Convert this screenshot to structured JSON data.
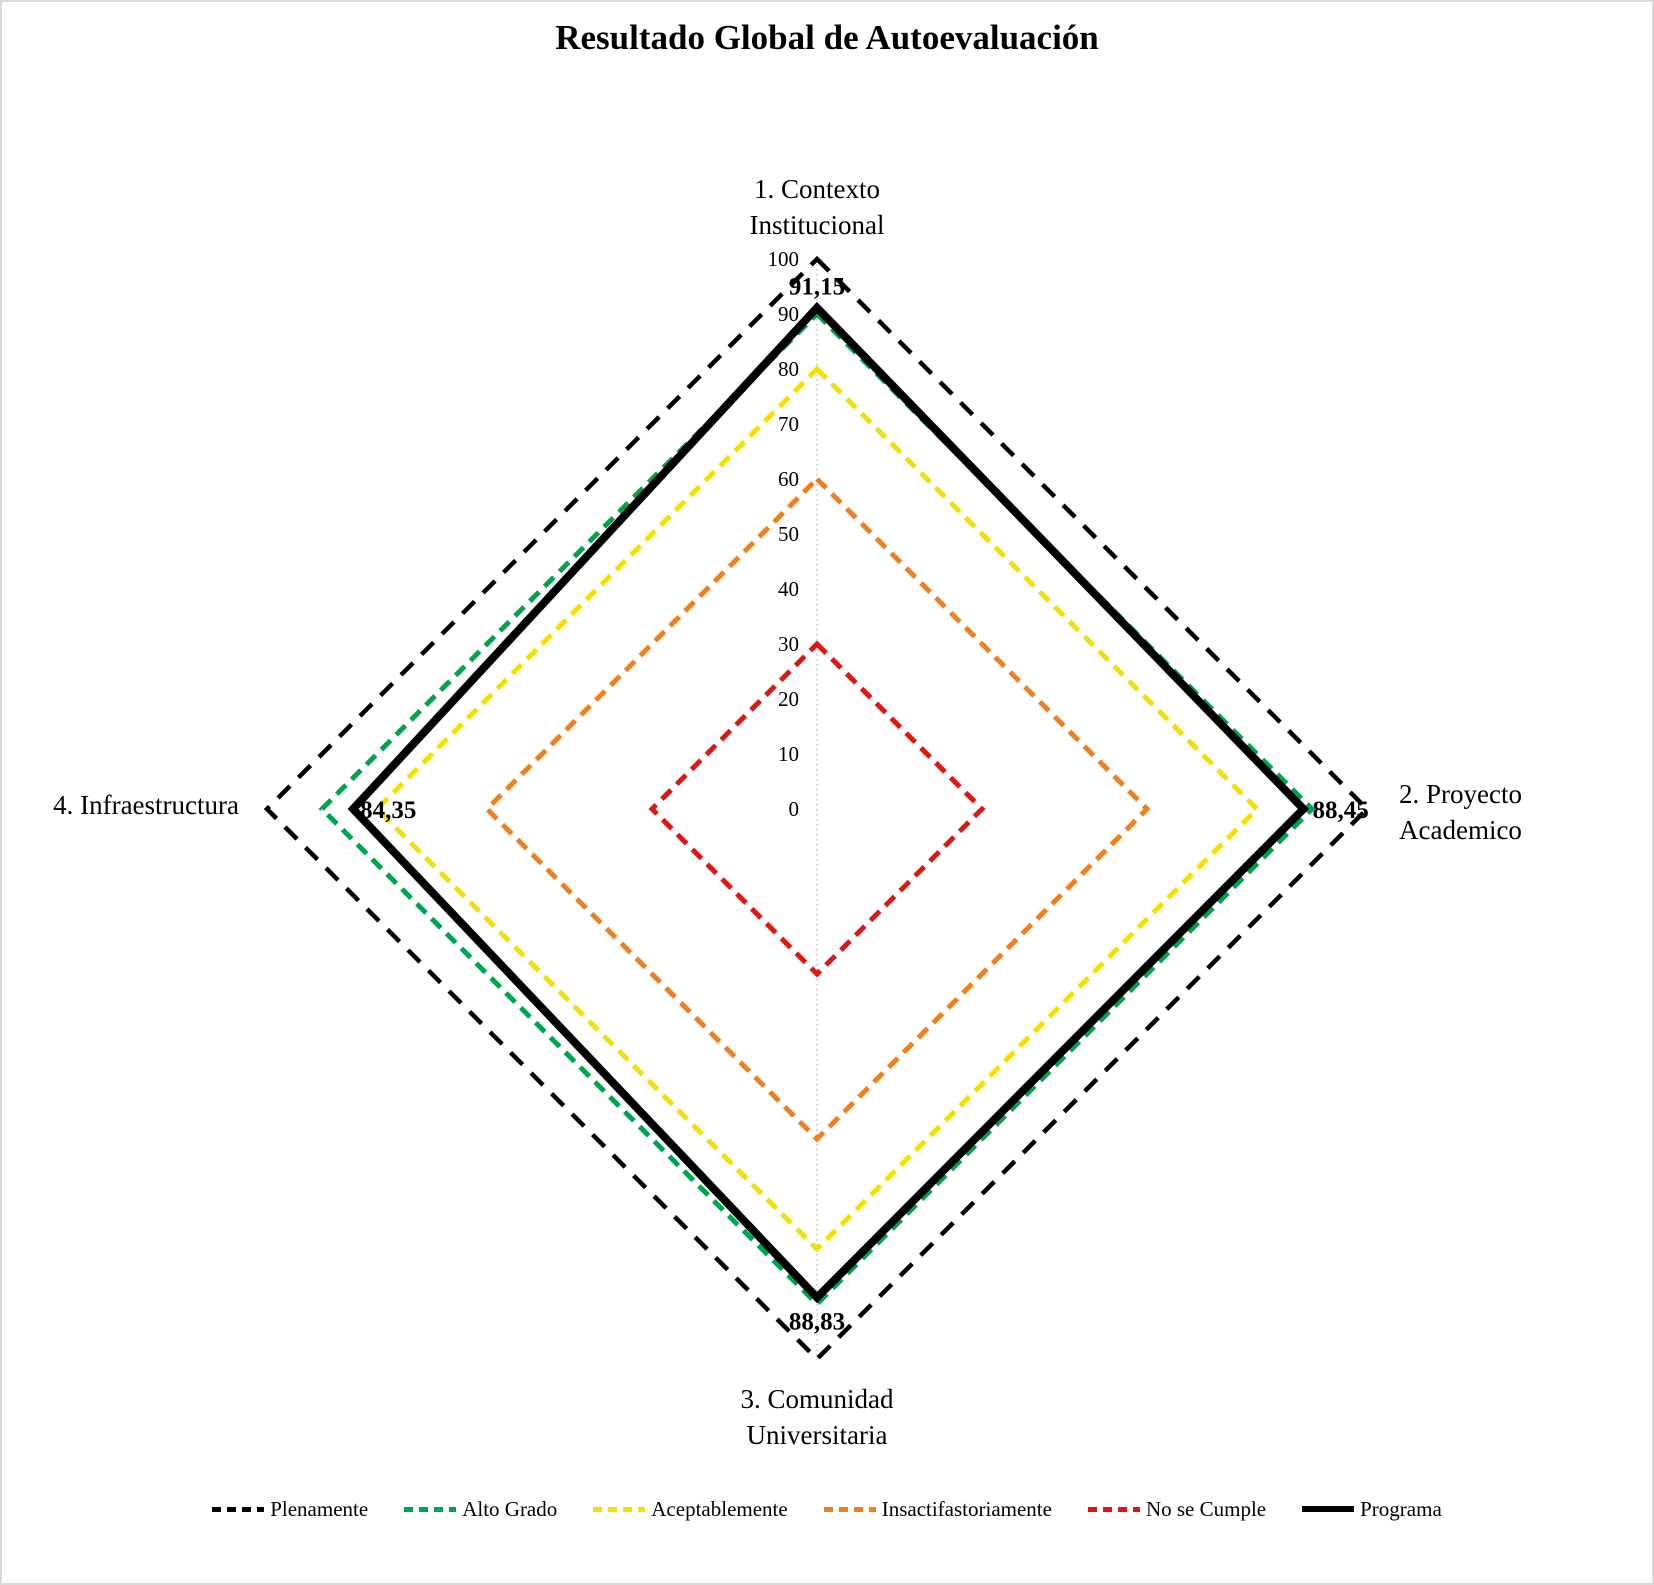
{
  "title": "Resultado Global de Autoevaluación",
  "chart_data": {
    "type": "radar",
    "title": "Resultado Global de Autoevaluación",
    "axes": [
      "1. Contexto Institucional",
      "2. Proyecto Academico",
      "3. Comunidad Universitaria",
      "4. Infraestructura"
    ],
    "axis_label_lines": [
      [
        "1. Contexto",
        "Institucional"
      ],
      [
        "2. Proyecto",
        "Academico"
      ],
      [
        "3. Comunidad",
        "Universitaria"
      ],
      [
        "4. Infraestructura"
      ]
    ],
    "r_min": 0,
    "r_max": 100,
    "r_tick_step": 10,
    "r_ticks": [
      "0",
      "10",
      "20",
      "30",
      "40",
      "50",
      "60",
      "70",
      "80",
      "90",
      "100"
    ],
    "grid": "single dotted vertical radial line",
    "legend_position": "bottom",
    "series": [
      {
        "name": "Plenamente",
        "values": [
          100,
          100,
          100,
          100
        ],
        "color": "#000000",
        "line": "dashed"
      },
      {
        "name": "Alto Grado",
        "values": [
          90,
          90,
          90,
          90
        ],
        "color": "#00A34F",
        "line": "dashed"
      },
      {
        "name": "Aceptablemente",
        "values": [
          80,
          80,
          80,
          80
        ],
        "color": "#F2E200",
        "line": "dashed"
      },
      {
        "name": "Insactifastoriamente",
        "values": [
          60,
          60,
          60,
          60
        ],
        "color": "#F0801E",
        "line": "dashed"
      },
      {
        "name": "No se Cumple",
        "values": [
          30,
          30,
          30,
          30
        ],
        "color": "#DE1712",
        "line": "dashed"
      },
      {
        "name": "Programa",
        "values": [
          91.15,
          88.45,
          88.83,
          84.35
        ],
        "color": "#000000",
        "line": "solid"
      }
    ],
    "data_labels": {
      "series": "Programa",
      "values": [
        "91,15",
        "88,45",
        "88,83",
        "84,35"
      ]
    }
  }
}
